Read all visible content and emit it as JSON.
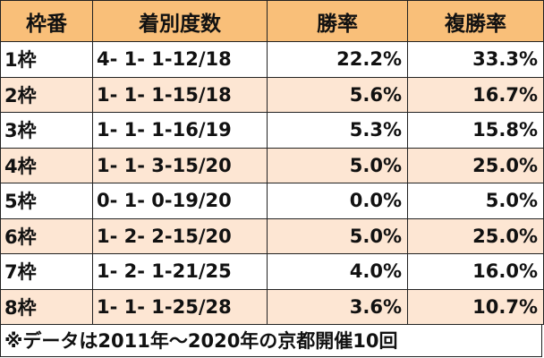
{
  "table": {
    "header": [
      "枠番",
      "着別度数",
      "勝率",
      "複勝率"
    ],
    "rows": [
      [
        "1枠",
        "4- 1- 1-12/18",
        "22.2%",
        "33.3%"
      ],
      [
        "2枠",
        "1- 1- 1-15/18",
        "5.6%",
        "16.7%"
      ],
      [
        "3枠",
        "1- 1- 1-16/19",
        "5.3%",
        "15.8%"
      ],
      [
        "4枠",
        "1- 1- 3-15/20",
        "5.0%",
        "25.0%"
      ],
      [
        "5枠",
        "0- 1- 0-19/20",
        "0.0%",
        "5.0%"
      ],
      [
        "6枠",
        "1- 2- 2-15/20",
        "5.0%",
        "25.0%"
      ],
      [
        "7枠",
        "1- 2- 1-21/25",
        "4.0%",
        "16.0%"
      ],
      [
        "8枠",
        "1- 1- 1-25/28",
        "3.6%",
        "10.7%"
      ]
    ],
    "footnote": "※データは2011年～2020年の京都開催10回"
  }
}
